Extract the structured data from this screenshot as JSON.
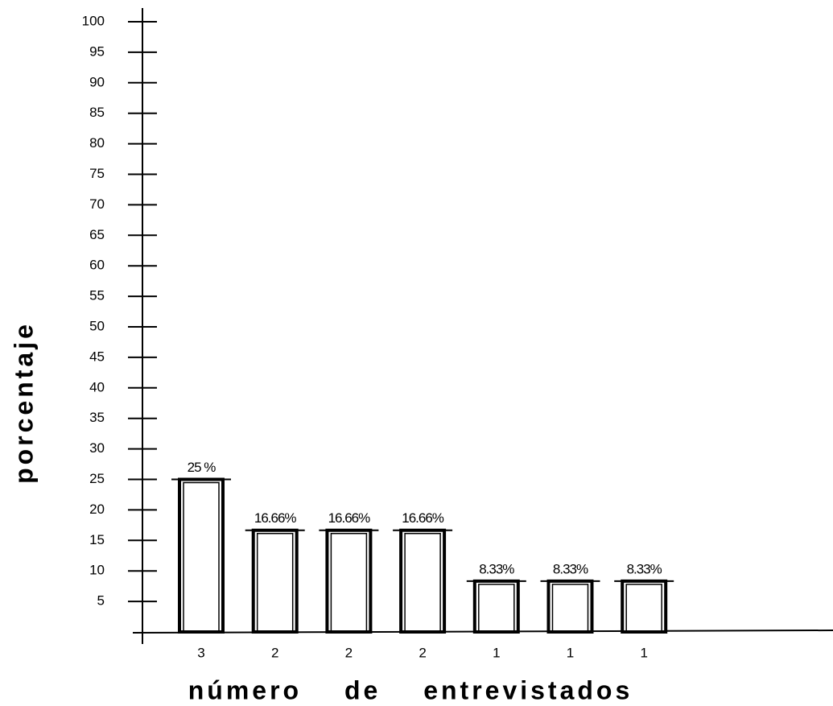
{
  "chart_data": {
    "type": "bar",
    "categories": [
      "3",
      "2",
      "2",
      "2",
      "1",
      "1",
      "1"
    ],
    "values": [
      25,
      16.66,
      16.66,
      16.66,
      8.33,
      8.33,
      8.33
    ],
    "value_labels": [
      "25 %",
      "16.66%",
      "16.66%",
      "16.66%",
      "8.33%",
      "8.33%",
      "8.33%"
    ],
    "color": "#000000",
    "ylim": [
      0,
      100
    ],
    "yticks": [
      5,
      10,
      15,
      20,
      25,
      30,
      35,
      40,
      45,
      50,
      55,
      60,
      65,
      70,
      75,
      80,
      85,
      90,
      95,
      100
    ],
    "y_label": "porcentaje",
    "x_label": "número de entrevistados"
  }
}
